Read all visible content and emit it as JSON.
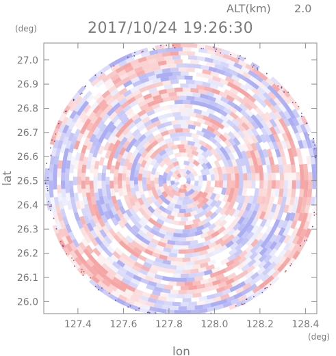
{
  "alt_label": "ALT(km)",
  "alt_value": "2.0",
  "timestamp": "2017/10/24 19:26:30",
  "y_unit": "(deg)",
  "x_unit": "(deg)",
  "chart_data": {
    "type": "heatmap",
    "title": "",
    "xlabel": "lon",
    "ylabel": "lat",
    "xlim": [
      127.25,
      128.45
    ],
    "ylim": [
      25.95,
      27.07
    ],
    "x_ticks": [
      "127.4",
      "127.6",
      "127.8",
      "128.0",
      "128.2",
      "128.4"
    ],
    "y_ticks": [
      "26.0",
      "26.1",
      "26.2",
      "26.3",
      "26.4",
      "26.5",
      "26.6",
      "26.7",
      "26.8",
      "26.9",
      "27.0"
    ],
    "grid": false,
    "coverage": {
      "shape": "circle",
      "center_lon": 127.86,
      "center_lat": 26.5,
      "radius_deg_lat": 0.57
    },
    "colors": {
      "positive": "#f5a0a0",
      "negative": "#a8aaf2",
      "neutral": "#ffffff",
      "frame": "#888888",
      "text": "#7a7a7a"
    }
  }
}
